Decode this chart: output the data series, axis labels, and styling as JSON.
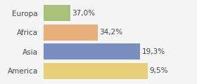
{
  "categories": [
    "Europa",
    "Africa",
    "Asia",
    "America"
  ],
  "values": [
    37.0,
    34.2,
    19.3,
    9.5
  ],
  "labels": [
    "37,0%",
    "34,2%",
    "19,3%",
    "9,5%"
  ],
  "bar_colors": [
    "#a8c07a",
    "#e8b07a",
    "#7a8fbe",
    "#e8d07a"
  ],
  "background_color": "#f5f5f5",
  "xlim": [
    0,
    46
  ],
  "bar_height": 0.82,
  "label_fontsize": 7.5,
  "tick_fontsize": 7.5
}
